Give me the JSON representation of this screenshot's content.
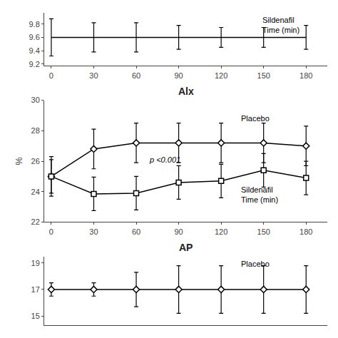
{
  "chart_data": [
    {
      "type": "line",
      "x": [
        0,
        30,
        60,
        90,
        120,
        150,
        180
      ],
      "series": [
        {
          "values": [
            9.6,
            9.6,
            9.6,
            9.6,
            9.6,
            9.6,
            9.6
          ],
          "errors": [
            0.28,
            0.22,
            0.22,
            0.18,
            0.15,
            0.15,
            0.18
          ],
          "color": "#000000",
          "marker": "none"
        }
      ],
      "xlim": [
        -5,
        195
      ],
      "xticks": [
        0,
        30,
        60,
        90,
        120,
        150,
        180
      ],
      "ylim": [
        9.17,
        9.97
      ],
      "yticks": [
        9.2,
        9.4,
        9.6,
        9.8
      ],
      "grid": false,
      "annotations": [
        "Sildenafil\nTime (min)"
      ]
    },
    {
      "type": "line",
      "title": "Alx",
      "ylabel": "%",
      "x": [
        0,
        30,
        60,
        90,
        120,
        150,
        180
      ],
      "series": [
        {
          "values": [
            25.0,
            26.8,
            27.2,
            27.2,
            27.2,
            27.2,
            27.0
          ],
          "errors": [
            1.3,
            1.3,
            1.3,
            1.3,
            1.3,
            1.3,
            1.3
          ],
          "color": "#000000",
          "marker": "diamond"
        },
        {
          "values": [
            25.0,
            23.85,
            23.9,
            24.6,
            24.7,
            25.4,
            24.9
          ],
          "errors": [
            1.1,
            1.1,
            1.1,
            1.1,
            1.1,
            1.1,
            1.1
          ],
          "color": "#000000",
          "marker": "square"
        }
      ],
      "xlim": [
        -5,
        195
      ],
      "xticks": [
        0,
        30,
        60,
        90,
        120,
        150,
        180
      ],
      "ylim": [
        22,
        30
      ],
      "yticks": [
        22,
        24,
        26,
        28,
        30
      ],
      "grid": false,
      "annotations": [
        "p <0.001",
        "Placebo",
        "Sildenafil\nTime (min)"
      ]
    },
    {
      "type": "line",
      "title": "AP",
      "x": [
        0,
        30,
        60,
        90,
        120,
        150,
        180
      ],
      "series": [
        {
          "values": [
            17.0,
            17.0,
            17.0,
            17.0,
            17.0,
            17.0,
            17.0
          ],
          "errors": [
            0.5,
            0.5,
            1.3,
            1.8,
            1.8,
            1.8,
            1.8
          ],
          "color": "#000000",
          "marker": "diamond"
        }
      ],
      "xlim": [
        -5,
        195
      ],
      "ylim": [
        14.3,
        19.5
      ],
      "yticks": [
        15,
        17,
        19
      ],
      "grid": false,
      "tick_labels": "y",
      "annotations": [
        "Placebo"
      ]
    }
  ]
}
